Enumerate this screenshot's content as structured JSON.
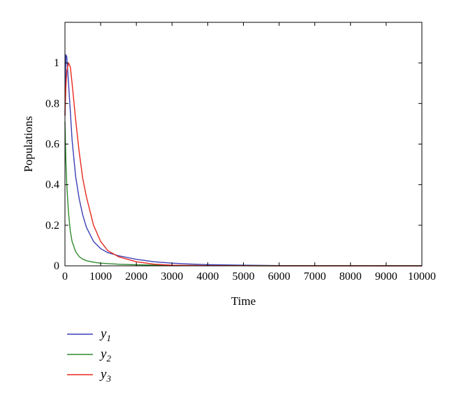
{
  "chart_data": {
    "type": "line",
    "xlabel": "Time",
    "ylabel": "Populations",
    "xlim": [
      0,
      10000
    ],
    "ylim": [
      0,
      1.2
    ],
    "xticks": [
      0,
      1000,
      2000,
      3000,
      4000,
      5000,
      6000,
      7000,
      8000,
      9000,
      10000
    ],
    "yticks": [
      0,
      0.2,
      0.4,
      0.6,
      0.8,
      1
    ],
    "grid": false,
    "legend_position": "bottom-left",
    "series": [
      {
        "name": "y",
        "subscript": "1",
        "color": "#3a3fb5",
        "x": [
          0,
          25,
          50,
          100,
          150,
          200,
          300,
          400,
          500,
          600,
          800,
          1000,
          1200,
          1500,
          2000,
          2500,
          3000,
          3500,
          4000,
          5000,
          6000,
          8000,
          10000
        ],
        "y": [
          0.74,
          1.04,
          1.03,
          0.9,
          0.76,
          0.62,
          0.44,
          0.33,
          0.25,
          0.19,
          0.12,
          0.085,
          0.065,
          0.05,
          0.032,
          0.02,
          0.013,
          0.009,
          0.006,
          0.003,
          0.001,
          0.0003,
          0
        ]
      },
      {
        "name": "y",
        "subscript": "2",
        "color": "#2e8b2e",
        "x": [
          0,
          25,
          50,
          100,
          150,
          200,
          300,
          400,
          500,
          600,
          800,
          1000,
          1500,
          2000,
          3000,
          4000,
          6000,
          10000
        ],
        "y": [
          0.71,
          0.52,
          0.4,
          0.26,
          0.17,
          0.12,
          0.07,
          0.045,
          0.033,
          0.025,
          0.018,
          0.013,
          0.008,
          0.005,
          0.002,
          0.001,
          0.0003,
          0
        ]
      },
      {
        "name": "y",
        "subscript": "3",
        "color": "#e8281e",
        "x": [
          0,
          25,
          50,
          100,
          150,
          200,
          300,
          400,
          500,
          600,
          800,
          1000,
          1200,
          1500,
          2000,
          2500,
          3000,
          4000,
          6000,
          10000
        ],
        "y": [
          0.74,
          0.88,
          0.96,
          1.0,
          0.98,
          0.9,
          0.72,
          0.56,
          0.43,
          0.34,
          0.2,
          0.12,
          0.075,
          0.045,
          0.02,
          0.008,
          0.003,
          0.001,
          0,
          0
        ]
      }
    ]
  }
}
